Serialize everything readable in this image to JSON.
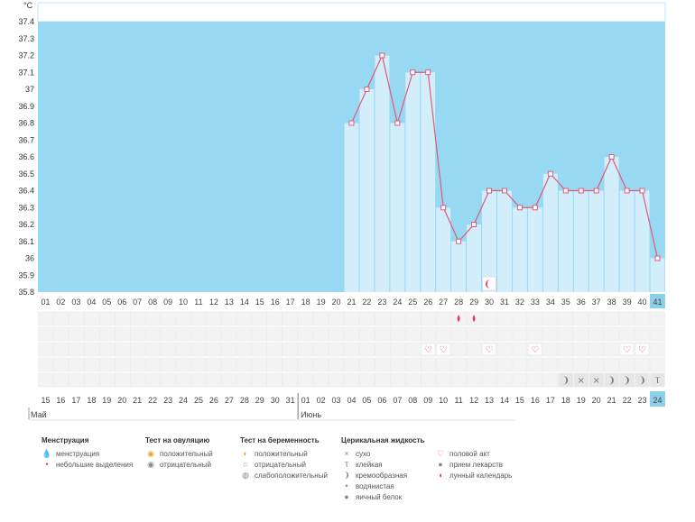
{
  "unit_label": "°C",
  "colors": {
    "plot_bg": "#97d8f2",
    "bar": "#d2eefa",
    "line": "#e05a7a",
    "accent": "#e83a6a",
    "grid": "#e5e5e5"
  },
  "chart_data": {
    "type": "line",
    "title": "",
    "ylabel": "°C",
    "ylim": [
      35.8,
      37.5
    ],
    "y_ticks": [
      "37.4",
      "37.3",
      "37.2",
      "37.1",
      "37",
      "36.9",
      "36.8",
      "36.7",
      "36.6",
      "36.5",
      "36.4",
      "36.3",
      "36.2",
      "36.1",
      "36",
      "35.9",
      "35.8"
    ],
    "cycle_days": [
      "01",
      "02",
      "03",
      "04",
      "05",
      "06",
      "07",
      "08",
      "09",
      "10",
      "11",
      "12",
      "13",
      "14",
      "15",
      "16",
      "17",
      "18",
      "19",
      "20",
      "21",
      "22",
      "23",
      "24",
      "25",
      "26",
      "27",
      "28",
      "29",
      "30",
      "31",
      "32",
      "33",
      "34",
      "35",
      "36",
      "37",
      "38",
      "39",
      "40",
      "41"
    ],
    "dates": [
      "15",
      "16",
      "17",
      "18",
      "19",
      "20",
      "21",
      "22",
      "23",
      "24",
      "25",
      "26",
      "27",
      "28",
      "29",
      "30",
      "31",
      "01",
      "02",
      "03",
      "04",
      "05",
      "06",
      "07",
      "08",
      "09",
      "10",
      "11",
      "12",
      "13",
      "14",
      "15",
      "16",
      "17",
      "18",
      "19",
      "20",
      "21",
      "22",
      "23",
      "24"
    ],
    "date_red_idx": [
      3,
      4,
      10,
      11,
      17,
      18,
      24,
      25,
      31,
      32,
      38,
      39
    ],
    "months": [
      "Май",
      "Июнь"
    ],
    "series": [
      {
        "name": "Температура",
        "values": [
          null,
          null,
          null,
          null,
          null,
          null,
          null,
          null,
          null,
          null,
          null,
          null,
          null,
          null,
          null,
          null,
          null,
          null,
          null,
          null,
          36.8,
          37.0,
          37.2,
          36.8,
          37.1,
          37.1,
          36.3,
          36.1,
          36.2,
          36.4,
          36.4,
          36.3,
          36.3,
          36.5,
          36.4,
          36.4,
          36.4,
          36.6,
          36.4,
          36.4,
          36.0
        ]
      }
    ],
    "markers": {
      "lunar_day_idx": [
        29
      ],
      "spotting_idx": [
        27,
        28
      ],
      "intercourse_idx": [
        25,
        26,
        29,
        32,
        38,
        39
      ],
      "cervical_fluid": [
        {
          "idx": 34,
          "symbol": "❩"
        },
        {
          "idx": 35,
          "symbol": "×"
        },
        {
          "idx": 36,
          "symbol": "×"
        },
        {
          "idx": 37,
          "symbol": "❩"
        },
        {
          "idx": 38,
          "symbol": "❩"
        },
        {
          "idx": 39,
          "symbol": "❩"
        },
        {
          "idx": 40,
          "symbol": "Ⲧ"
        }
      ],
      "current_day_idx": 40
    }
  },
  "legend": [
    {
      "title": "Менструация",
      "items": [
        {
          "icon": "drops-icon",
          "glyph": "🌢",
          "label": "менструация"
        },
        {
          "icon": "drop-icon",
          "glyph": "🌢",
          "label": "небольшие выделения"
        }
      ]
    },
    {
      "title": "Тест на овуляцию",
      "items": [
        {
          "icon": "ovulation-positive-icon",
          "glyph": "◉",
          "label": "положительный"
        },
        {
          "icon": "ovulation-negative-icon",
          "glyph": "◉",
          "label": "отрицательный"
        }
      ]
    },
    {
      "title": "Тест на беременность",
      "items": [
        {
          "icon": "pregnancy-positive-icon",
          "glyph": "◐",
          "label": "положительный"
        },
        {
          "icon": "pregnancy-negative-icon",
          "glyph": "○",
          "label": "отрицательный"
        },
        {
          "icon": "pregnancy-weak-icon",
          "glyph": "◍",
          "label": "слабоположительный"
        }
      ]
    },
    {
      "title": "Церикальная жидкость",
      "items": [
        {
          "icon": "dry-icon",
          "glyph": "×",
          "label": "сухо"
        },
        {
          "icon": "sticky-icon",
          "glyph": "Ⲧ",
          "label": "клейкая"
        },
        {
          "icon": "creamy-icon",
          "glyph": "❩",
          "label": "кремообразная"
        },
        {
          "icon": "watery-icon",
          "glyph": "●",
          "label": "водянистая"
        },
        {
          "icon": "egg-white-icon",
          "glyph": "⬮",
          "label": "яичный белок"
        }
      ]
    },
    {
      "title": "",
      "items": [
        {
          "icon": "intercourse-icon",
          "glyph": "♡",
          "label": "половой акт"
        },
        {
          "icon": "medicine-icon",
          "glyph": "●",
          "label": "прием лекарств"
        },
        {
          "icon": "lunar-calendar-icon",
          "glyph": "◖",
          "label": "лунный календарь"
        }
      ]
    }
  ]
}
